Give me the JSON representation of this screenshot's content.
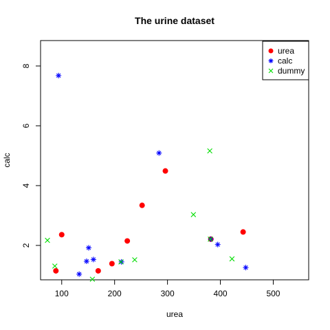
{
  "chart_data": {
    "type": "scatter",
    "title": "The urine dataset",
    "xlabel": "urea",
    "ylabel": "calc",
    "xlim": [
      60,
      567
    ],
    "ylim": [
      0.85,
      8.85
    ],
    "x_ticks": [
      100,
      200,
      300,
      400,
      500
    ],
    "y_ticks": [
      2,
      4,
      6,
      8
    ],
    "grid": false,
    "legend_position": "top-right",
    "series": [
      {
        "name": "urea",
        "marker": "filled-circle",
        "color": "#ff0000",
        "points": [
          {
            "x": 89,
            "y": 1.15
          },
          {
            "x": 100,
            "y": 2.36
          },
          {
            "x": 169,
            "y": 1.15
          },
          {
            "x": 195,
            "y": 1.39
          },
          {
            "x": 224,
            "y": 2.15
          },
          {
            "x": 252,
            "y": 3.34
          },
          {
            "x": 296,
            "y": 4.49
          },
          {
            "x": 382,
            "y": 2.21
          },
          {
            "x": 443,
            "y": 2.45
          }
        ]
      },
      {
        "name": "calc",
        "marker": "asterisk",
        "color": "#0000ff",
        "points": [
          {
            "x": 94,
            "y": 7.68
          },
          {
            "x": 133,
            "y": 1.04
          },
          {
            "x": 147,
            "y": 1.47
          },
          {
            "x": 151,
            "y": 1.92
          },
          {
            "x": 160,
            "y": 1.53
          },
          {
            "x": 213,
            "y": 1.45
          },
          {
            "x": 284,
            "y": 5.09
          },
          {
            "x": 382,
            "y": 2.21
          },
          {
            "x": 395,
            "y": 2.03
          },
          {
            "x": 448,
            "y": 1.26
          }
        ]
      },
      {
        "name": "dummy",
        "marker": "cross",
        "color": "#00dd00",
        "points": [
          {
            "x": 73,
            "y": 2.17
          },
          {
            "x": 87,
            "y": 1.31
          },
          {
            "x": 158,
            "y": 0.87
          },
          {
            "x": 212,
            "y": 1.45
          },
          {
            "x": 238,
            "y": 1.52
          },
          {
            "x": 349,
            "y": 3.03
          },
          {
            "x": 380,
            "y": 5.16
          },
          {
            "x": 381,
            "y": 2.21
          },
          {
            "x": 422,
            "y": 1.55
          }
        ]
      }
    ]
  }
}
